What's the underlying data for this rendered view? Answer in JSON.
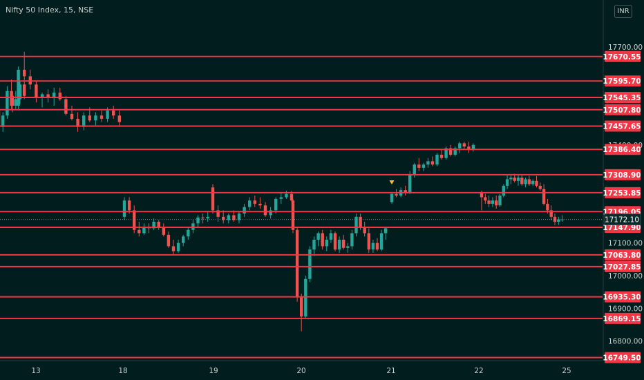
{
  "title": "Nifty 50 Index, 15, NSE",
  "currency": "INR",
  "colors": {
    "background": "#011d1d",
    "level_line": "#f23645",
    "up_candle": "#26a69a",
    "down_candle": "#ef5350",
    "axis_text": "#c8d0d0",
    "marker": "#f5c518"
  },
  "chart_data": {
    "type": "candlestick",
    "ylim": [
      16740,
      17780
    ],
    "y_ticks": [
      "17700.00",
      "17400.00",
      "17100.00",
      "17000.00",
      "16900.00",
      "16800.00"
    ],
    "x_ticks": [
      "13",
      "18",
      "19",
      "20",
      "21",
      "22",
      "25"
    ],
    "current_price": "17172.10",
    "grid": false,
    "levels": [
      "17670.55",
      "17595.70",
      "17545.35",
      "17507.80",
      "17457.65",
      "17386.40",
      "17308.90",
      "17253.85",
      "17196.05",
      "17147.90",
      "17063.80",
      "17027.85",
      "16935.30",
      "16869.15",
      "16749.50"
    ],
    "marker": {
      "session": "21",
      "type": "down-triangle",
      "price": 17262
    },
    "sessions": [
      {
        "label": "",
        "candles": [
          [
            17510,
            17525,
            17440,
            17455
          ],
          [
            17455,
            17500,
            17440,
            17490
          ],
          [
            17490,
            17580,
            17480,
            17565
          ],
          [
            17565,
            17600,
            17510,
            17520
          ],
          [
            17520,
            17565,
            17510,
            17540
          ],
          [
            17540,
            17595,
            17525,
            17585
          ],
          [
            17585,
            17600,
            17540,
            17550
          ]
        ]
      },
      {
        "label": "13",
        "candles": [
          [
            17550,
            17560,
            17500,
            17520
          ],
          [
            17520,
            17640,
            17510,
            17630
          ],
          [
            17630,
            17685,
            17600,
            17610
          ],
          [
            17610,
            17630,
            17570,
            17585
          ],
          [
            17585,
            17595,
            17530,
            17545
          ],
          [
            17545,
            17560,
            17515,
            17555
          ],
          [
            17555,
            17570,
            17530,
            17545
          ],
          [
            17545,
            17575,
            17520,
            17560
          ],
          [
            17560,
            17575,
            17535,
            17540
          ],
          [
            17540,
            17550,
            17490,
            17495
          ],
          [
            17495,
            17520,
            17475,
            17480
          ],
          [
            17480,
            17500,
            17440,
            17455
          ],
          [
            17455,
            17500,
            17445,
            17490
          ],
          [
            17490,
            17515,
            17470,
            17475
          ],
          [
            17475,
            17500,
            17460,
            17490
          ],
          [
            17490,
            17505,
            17470,
            17480
          ],
          [
            17480,
            17515,
            17470,
            17505
          ],
          [
            17505,
            17520,
            17480,
            17490
          ],
          [
            17490,
            17505,
            17455,
            17470
          ]
        ]
      },
      {
        "label": "18",
        "candles": [
          [
            17180,
            17240,
            17170,
            17230
          ],
          [
            17230,
            17240,
            17190,
            17200
          ],
          [
            17200,
            17215,
            17130,
            17140
          ],
          [
            17140,
            17165,
            17120,
            17130
          ],
          [
            17130,
            17160,
            17125,
            17150
          ],
          [
            17150,
            17160,
            17130,
            17145
          ],
          [
            17145,
            17175,
            17140,
            17165
          ],
          [
            17165,
            17170,
            17140,
            17148
          ],
          [
            17148,
            17160,
            17120,
            17125
          ],
          [
            17125,
            17135,
            17085,
            17090
          ],
          [
            17090,
            17110,
            17065,
            17075
          ],
          [
            17075,
            17110,
            17070,
            17100
          ],
          [
            17100,
            17125,
            17090,
            17120
          ],
          [
            17120,
            17150,
            17110,
            17140
          ],
          [
            17140,
            17170,
            17130,
            17160
          ],
          [
            17160,
            17185,
            17150,
            17178
          ],
          [
            17178,
            17190,
            17160,
            17175
          ],
          [
            17175,
            17195,
            17165,
            17180
          ]
        ]
      },
      {
        "label": "19",
        "candles": [
          [
            17270,
            17280,
            17190,
            17200
          ],
          [
            17200,
            17215,
            17165,
            17180
          ],
          [
            17180,
            17200,
            17160,
            17170
          ],
          [
            17170,
            17190,
            17160,
            17185
          ],
          [
            17185,
            17200,
            17165,
            17170
          ],
          [
            17170,
            17195,
            17160,
            17190
          ],
          [
            17190,
            17220,
            17180,
            17210
          ],
          [
            17210,
            17240,
            17200,
            17230
          ],
          [
            17230,
            17245,
            17210,
            17220
          ],
          [
            17220,
            17240,
            17205,
            17215
          ],
          [
            17215,
            17225,
            17180,
            17185
          ],
          [
            17185,
            17210,
            17175,
            17200
          ],
          [
            17200,
            17240,
            17190,
            17235
          ],
          [
            17235,
            17255,
            17220,
            17240
          ],
          [
            17240,
            17260,
            17235,
            17250
          ],
          [
            17250,
            17260,
            17225,
            17230
          ]
        ]
      },
      {
        "label": "20",
        "candles": [
          [
            17230,
            17235,
            17130,
            17140
          ],
          [
            17140,
            17150,
            16920,
            16935
          ],
          [
            16935,
            16945,
            16830,
            16875
          ],
          [
            16875,
            17000,
            16870,
            16990
          ],
          [
            16990,
            17090,
            16980,
            17080
          ],
          [
            17080,
            17120,
            17060,
            17110
          ],
          [
            17110,
            17135,
            17090,
            17130
          ],
          [
            17130,
            17140,
            17080,
            17090
          ],
          [
            17090,
            17120,
            17075,
            17110
          ],
          [
            17110,
            17140,
            17100,
            17130
          ],
          [
            17130,
            17135,
            17075,
            17080
          ],
          [
            17080,
            17120,
            17070,
            17110
          ],
          [
            17110,
            17125,
            17080,
            17085
          ],
          [
            17085,
            17100,
            17070,
            17090
          ],
          [
            17090,
            17140,
            17080,
            17130
          ],
          [
            17130,
            17190,
            17120,
            17180
          ],
          [
            17180,
            17190,
            17140,
            17150
          ],
          [
            17150,
            17165,
            17120,
            17130
          ],
          [
            17130,
            17145,
            17070,
            17080
          ],
          [
            17080,
            17110,
            17070,
            17100
          ],
          [
            17100,
            17115,
            17075,
            17080
          ],
          [
            17080,
            17140,
            17075,
            17130
          ],
          [
            17130,
            17150,
            17110,
            17145
          ]
        ]
      },
      {
        "label": "21",
        "candles": [
          [
            17225,
            17255,
            17220,
            17250
          ],
          [
            17250,
            17265,
            17240,
            17245
          ],
          [
            17245,
            17270,
            17240,
            17262
          ],
          [
            17262,
            17275,
            17245,
            17255
          ],
          [
            17255,
            17320,
            17250,
            17310
          ],
          [
            17310,
            17345,
            17300,
            17340
          ],
          [
            17340,
            17360,
            17320,
            17330
          ],
          [
            17330,
            17345,
            17320,
            17340
          ],
          [
            17340,
            17360,
            17330,
            17350
          ],
          [
            17350,
            17365,
            17335,
            17340
          ],
          [
            17340,
            17375,
            17335,
            17370
          ],
          [
            17370,
            17385,
            17355,
            17360
          ],
          [
            17360,
            17395,
            17355,
            17390
          ],
          [
            17390,
            17400,
            17365,
            17370
          ],
          [
            17370,
            17395,
            17365,
            17390
          ],
          [
            17390,
            17410,
            17375,
            17405
          ],
          [
            17405,
            17410,
            17385,
            17395
          ],
          [
            17395,
            17410,
            17375,
            17385
          ],
          [
            17385,
            17405,
            17380,
            17400
          ]
        ]
      },
      {
        "label": "22",
        "candles": [
          [
            17255,
            17260,
            17200,
            17240
          ],
          [
            17240,
            17250,
            17220,
            17230
          ],
          [
            17230,
            17245,
            17210,
            17220
          ],
          [
            17220,
            17240,
            17210,
            17230
          ],
          [
            17230,
            17245,
            17205,
            17215
          ],
          [
            17215,
            17250,
            17210,
            17245
          ],
          [
            17245,
            17280,
            17240,
            17275
          ],
          [
            17275,
            17310,
            17265,
            17295
          ],
          [
            17295,
            17310,
            17280,
            17300
          ],
          [
            17300,
            17312,
            17285,
            17290
          ],
          [
            17290,
            17308,
            17275,
            17300
          ],
          [
            17300,
            17310,
            17275,
            17280
          ],
          [
            17280,
            17300,
            17270,
            17295
          ],
          [
            17295,
            17305,
            17275,
            17280
          ],
          [
            17280,
            17295,
            17275,
            17290
          ],
          [
            17290,
            17305,
            17270,
            17275
          ],
          [
            17275,
            17285,
            17260,
            17265
          ],
          [
            17265,
            17280,
            17215,
            17220
          ],
          [
            17220,
            17235,
            17190,
            17200
          ],
          [
            17200,
            17215,
            17170,
            17180
          ],
          [
            17180,
            17190,
            17155,
            17165
          ],
          [
            17165,
            17180,
            17155,
            17172
          ],
          [
            17172,
            17185,
            17165,
            17172
          ]
        ]
      }
    ]
  }
}
